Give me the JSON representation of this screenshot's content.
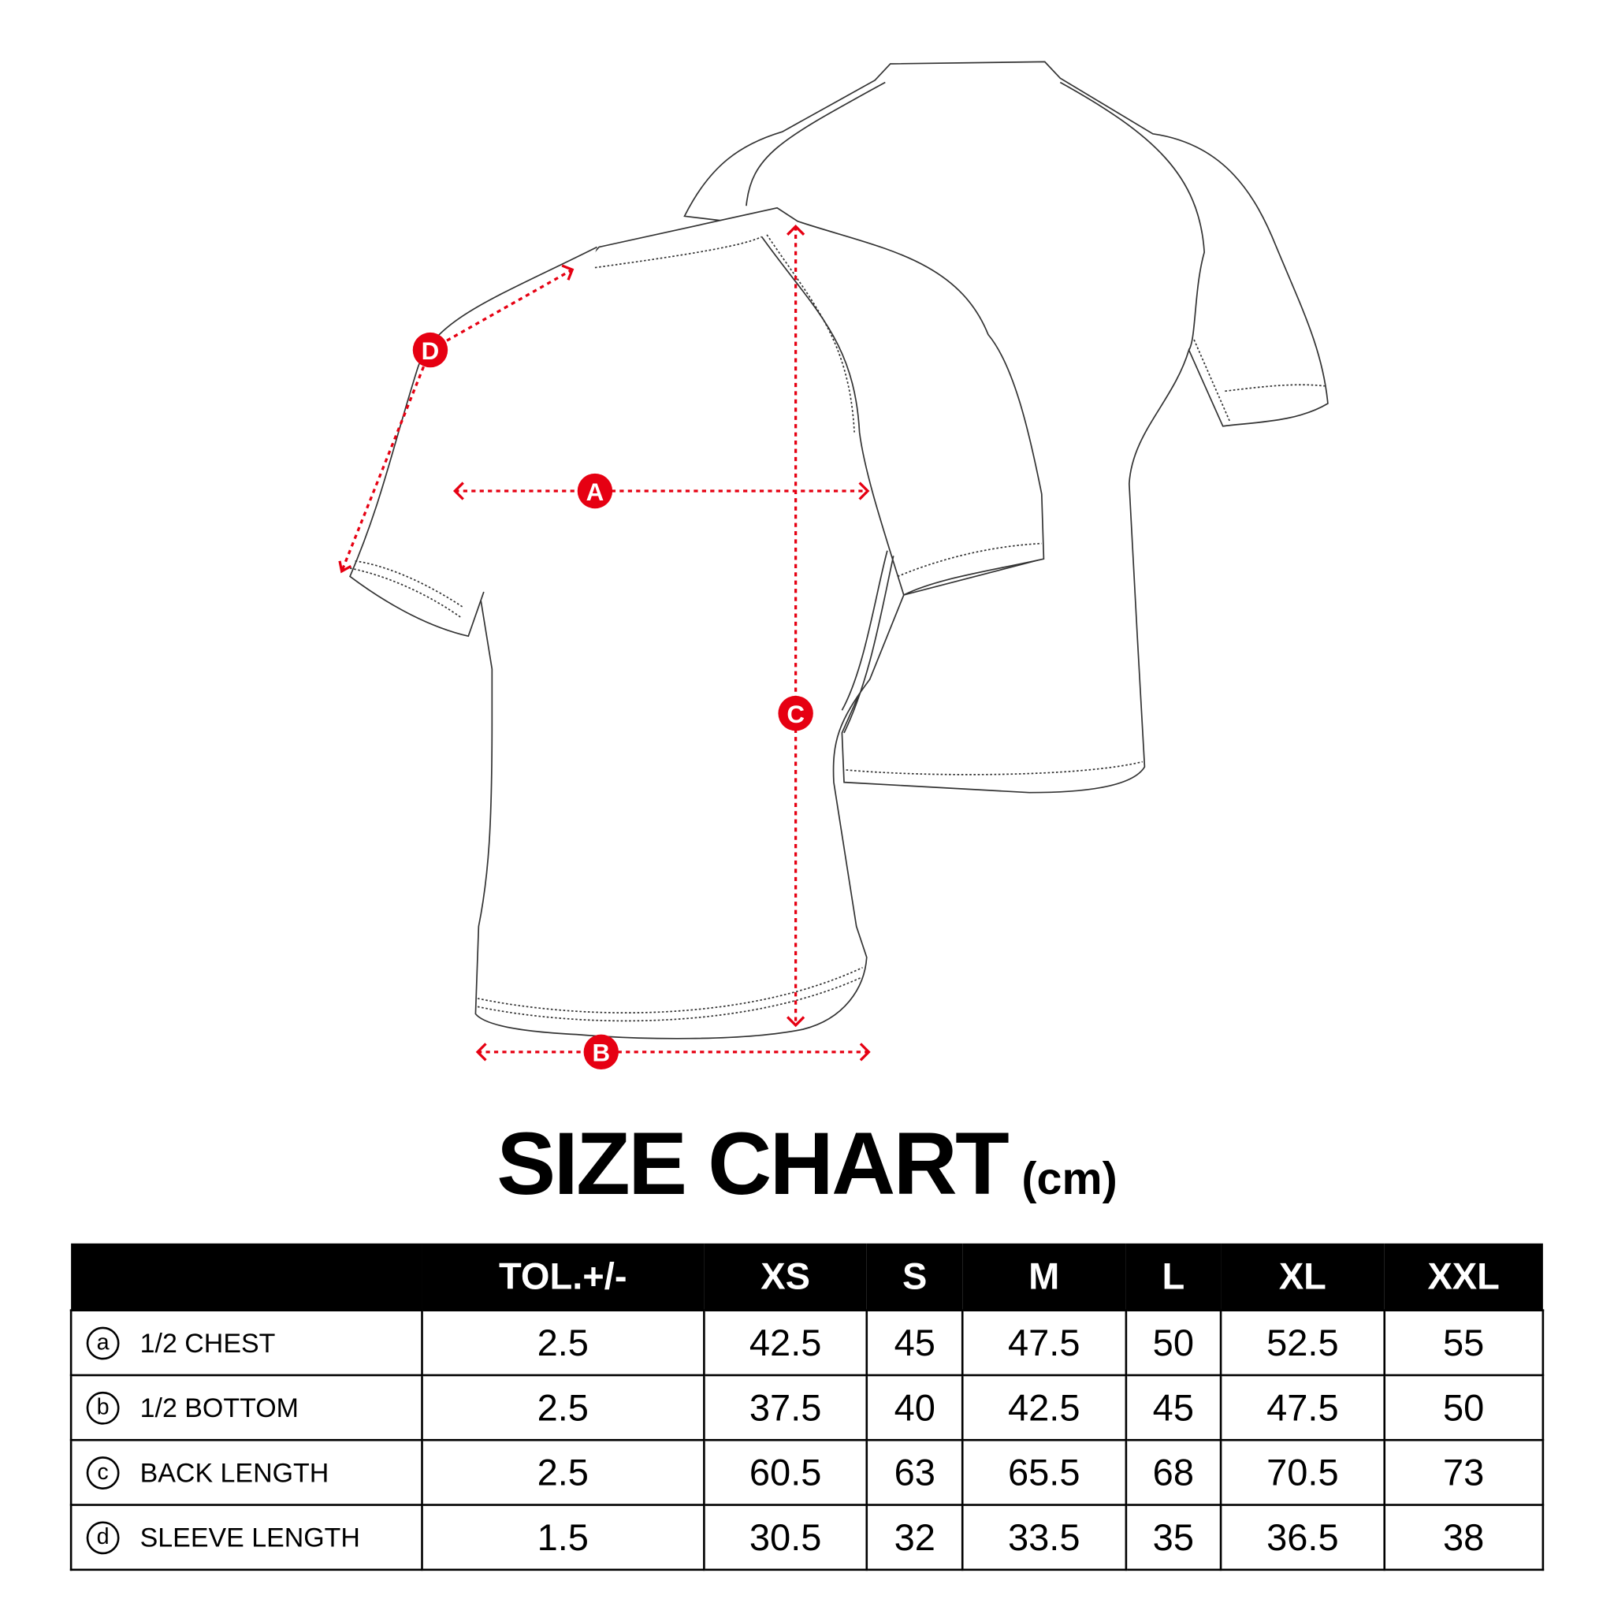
{
  "markers": {
    "a": "A",
    "b": "B",
    "c": "C",
    "d": "D"
  },
  "colors": {
    "accent": "#e60012",
    "outline": "#333333",
    "header_bg": "#000000"
  },
  "title": {
    "main": "SIZE CHART",
    "unit": "(cm)"
  },
  "table": {
    "headers": [
      "",
      "TOL.+/-",
      "XS",
      "S",
      "M",
      "L",
      "XL",
      "XXL"
    ],
    "rows": [
      {
        "icon": "a",
        "label": "1/2 CHEST",
        "values": [
          "2.5",
          "42.5",
          "45",
          "47.5",
          "50",
          "52.5",
          "55"
        ]
      },
      {
        "icon": "b",
        "label": "1/2 BOTTOM",
        "values": [
          "2.5",
          "37.5",
          "40",
          "42.5",
          "45",
          "47.5",
          "50"
        ]
      },
      {
        "icon": "c",
        "label": "BACK LENGTH",
        "values": [
          "2.5",
          "60.5",
          "63",
          "65.5",
          "68",
          "70.5",
          "73"
        ]
      },
      {
        "icon": "d",
        "label": "SLEEVE LENGTH",
        "values": [
          "1.5",
          "30.5",
          "32",
          "33.5",
          "35",
          "36.5",
          "38"
        ]
      }
    ]
  }
}
